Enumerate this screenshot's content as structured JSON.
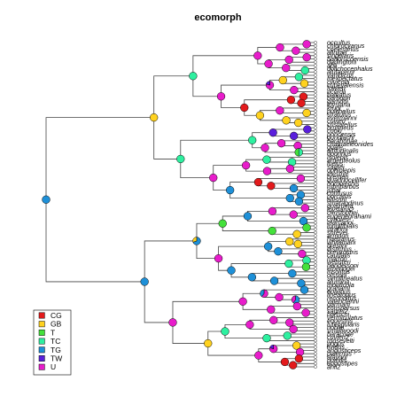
{
  "figure": {
    "title": "ecomorph"
  },
  "legend": {
    "placement": "bottom-left",
    "items": [
      {
        "label": "CG",
        "color": "#e31a1c"
      },
      {
        "label": "GB",
        "color": "#ffd21f"
      },
      {
        "label": "T",
        "color": "#44e13b"
      },
      {
        "label": "TC",
        "color": "#2ef0a0"
      },
      {
        "label": "TG",
        "color": "#1e90d8"
      },
      {
        "label": "TW",
        "color": "#5a1fdc"
      },
      {
        "label": "U",
        "color": "#e81ccb"
      }
    ]
  },
  "tips": {
    "count": 100,
    "labels": [
      "occultus",
      "chlorocyanus",
      "coelestinus",
      "aliniger",
      "singularis",
      "bahorucoensis",
      "darlingtoni",
      "ahli",
      "dolichocephalus",
      "alutaceus",
      "vanidicus",
      "inexpectatus",
      "clivicola",
      "cupeyalensis",
      "fowleri",
      "ricordii",
      "baleatus",
      "barbouri",
      "garridoi",
      "loysiana",
      "krugi",
      "pulchellus",
      "stratulus",
      "evermanni",
      "cuvieri",
      "cristatellus",
      "brunneus",
      "cooki",
      "poncensis",
      "gundlachi",
      "barahonae",
      "chamaeleonides",
      "guafe",
      "altitudinalis",
      "oporinus",
      "isolepis",
      "argenteolus",
      "lucius",
      "sagrei",
      "ophiolepis",
      "mestrei",
      "bremeri",
      "quadriocellifer",
      "homolechis",
      "rubribarbus",
      "jubar",
      "confusus",
      "porcatus",
      "allisoni",
      "smaragdinus",
      "guazuma",
      "loysiana2",
      "christophei",
      "eugenegrahami",
      "cybotes",
      "marcanoi",
      "longitibialis",
      "strahmi",
      "shrevei",
      "armouri",
      "haetianus",
      "whitemani",
      "breslini",
      "distichus",
      "brevirostris",
      "caudalis",
      "marron",
      "websteri",
      "hendersoni",
      "etheridgei",
      "insolitus",
      "olssoni",
      "semilineatus",
      "alumina",
      "monticola",
      "grahami",
      "opalinus",
      "lineatopus",
      "reconditus",
      "valencienni",
      "garmani",
      "conspersus",
      "sagrei2",
      "bartschi",
      "vermiculatus",
      "equestris",
      "luteogularis",
      "noblei",
      "smallwoodi",
      "baracoae",
      "cuvieri2",
      "roosevelti",
      "pogus",
      "lividus",
      "angusticeps",
      "paternus",
      "alayoni",
      "pumilis",
      "angustipes",
      "ahli2"
    ]
  },
  "node_states": [
    {
      "U": 1
    },
    {
      "U": 1
    },
    {
      "U": 1
    },
    {
      "U": 1
    },
    {
      "U": 1
    },
    {
      "U": 1
    },
    {
      "U": 1
    },
    {
      "U": 1
    },
    {
      "TC": 1
    },
    {
      "TC": 1
    },
    {
      "TC": 1
    },
    {
      "GB": 1
    },
    {
      "GB": 1
    },
    {
      "U": 0.8,
      "TW": 0.2
    },
    {
      "U": 1
    },
    {
      "U": 1
    },
    {
      "CG": 1
    },
    {
      "CG": 1
    },
    {
      "CG": 1
    },
    {
      "CG": 1
    },
    {
      "U": 1
    },
    {
      "GB": 1
    },
    {
      "GB": 1
    },
    {
      "GB": 1
    },
    {
      "GB": 1
    },
    {
      "GB": 1
    },
    {
      "TW": 1
    },
    {
      "TW": 1
    },
    {
      "TW": 1
    },
    {
      "TC": 1
    },
    {
      "U": 1
    },
    {
      "U": 1
    },
    {
      "U": 1
    },
    {
      "TC": 0.5,
      "T": 0.5
    },
    {
      "TC": 1
    },
    {
      "TC": 1
    },
    {
      "TC": 1
    },
    {
      "U": 1
    },
    {
      "U": 1
    },
    {
      "U": 1
    },
    {
      "U": 1
    },
    {
      "U": 1
    },
    {
      "CG": 1
    },
    {
      "CG": 1
    },
    {
      "TG": 1
    },
    {
      "TG": 1
    },
    {
      "TG": 1
    },
    {
      "TG": 1
    },
    {
      "TG": 1
    },
    {
      "TG": 1
    },
    {
      "U": 1
    },
    {
      "U": 1
    },
    {
      "U": 1
    },
    {
      "TG": 1
    },
    {
      "TG": 1
    },
    {
      "T": 1
    },
    {
      "T": 1
    },
    {
      "T": 1
    },
    {
      "GB": 1
    },
    {
      "TG": 0.7,
      "GB": 0.3
    },
    {
      "GB": 1
    },
    {
      "GB": 1
    },
    {
      "TG": 1
    },
    {
      "TG": 1
    },
    {
      "U": 1
    },
    {
      "U": 1
    },
    {
      "TC": 1
    },
    {
      "TC": 1
    },
    {
      "T": 1
    },
    {
      "TG": 1
    },
    {
      "TG": 1
    },
    {
      "TG": 1
    },
    {
      "TG": 1
    },
    {
      "TG": 1
    },
    {
      "TG": 1
    },
    {
      "TG": 1
    },
    {
      "U": 0.6,
      "TG": 0.4
    },
    {
      "U": 1
    },
    {
      "TG": 0.6,
      "U": 0.4
    },
    {
      "U": 1
    }
  ]
}
